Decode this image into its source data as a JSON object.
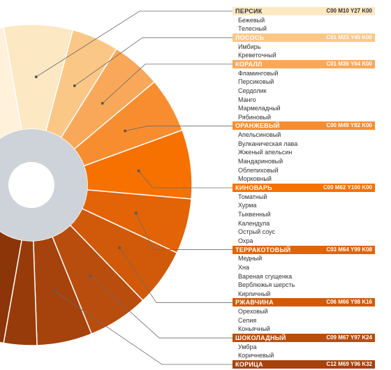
{
  "wheel": {
    "inner_colors": [
      "#cdd3d8"
    ],
    "center_color": "#ffffff"
  },
  "groups": [
    {
      "key": "persik",
      "name": "ПЕРСИК",
      "code": "C00 M10 Y27 K00",
      "color": "#fde8c4",
      "text_color": "#333333",
      "shades": [
        "Бежевый",
        "Телесный"
      ]
    },
    {
      "key": "losos",
      "name": "ЛОСОСЬ",
      "code": "C01 M23 Y45 K00",
      "color": "#fbc786",
      "text_color": "#ffffff",
      "shades": [
        "Имбирь",
        "Креветочный"
      ]
    },
    {
      "key": "korall",
      "name": "КОРАЛЛ",
      "code": "C01 M36 Y64 K00",
      "color": "#f9a85a",
      "text_color": "#ffffff",
      "shades": [
        "Фламинговый",
        "Персиковый",
        "Сердолик",
        "Манго",
        "Мармеладный",
        "Рябиновый"
      ]
    },
    {
      "key": "oranzhevy",
      "name": "ОРАНЖЕВЫЙ",
      "code": "C00 M49 Y82 K00",
      "color": "#f88d30",
      "text_color": "#ffffff",
      "shades": [
        "Апельсиновый",
        "Вулканическая лава",
        "Жженый апельсин",
        "Мандариновый",
        "Облепиховый",
        "Морковный"
      ]
    },
    {
      "key": "kinovar",
      "name": "КИНОВАРЬ",
      "code": "C00 M62 Y100 K00",
      "color": "#f67100",
      "text_color": "#ffffff",
      "shades": [
        "Томатный",
        "Хурма",
        "Тыквенный",
        "Календула",
        "Острый соус",
        "Охра"
      ]
    },
    {
      "key": "terrakotovy",
      "name": "ТЕРРАКОТОВЫЙ",
      "code": "C03 M64 Y99 K08",
      "color": "#e36307",
      "text_color": "#ffffff",
      "shades": [
        "Медный",
        "Хна",
        "Вареная сгущенка",
        "Верблюжья шерсть",
        "Кирпичный"
      ]
    },
    {
      "key": "rzhavchina",
      "name": "РЖАВЧИНА",
      "code": "C06 M66 Y98 K16",
      "color": "#d05a09",
      "text_color": "#ffffff",
      "shades": [
        "Ореховый",
        "Сепия",
        "Коньячный"
      ]
    },
    {
      "key": "shokoladny",
      "name": "ШОКОЛАДНЫЙ",
      "code": "C09 M67 Y97 K24",
      "color": "#b94d0d",
      "text_color": "#ffffff",
      "shades": [
        "Умбра",
        "Коричневый"
      ]
    },
    {
      "key": "korica",
      "name": "КОРИЦА",
      "code": "C12 M69 Y96 K32",
      "color": "#a6420c",
      "text_color": "#ffffff",
      "shades": []
    }
  ],
  "wheel_slices": [
    {
      "group": "persik",
      "color": "#fde8c4"
    },
    {
      "group": "losos",
      "color": "#fbc786"
    },
    {
      "group": "korall",
      "color": "#f9a85a"
    },
    {
      "group": "oranzhevy",
      "color": "#f88d30"
    },
    {
      "group": "kinovar",
      "color": "#f67100"
    },
    {
      "group": "terrakotovy",
      "color": "#e36307"
    },
    {
      "group": "rzhavchina",
      "color": "#d05a09"
    },
    {
      "group": "shokoladny",
      "color": "#b94d0d"
    },
    {
      "group": "korica",
      "color": "#a6420c"
    }
  ]
}
